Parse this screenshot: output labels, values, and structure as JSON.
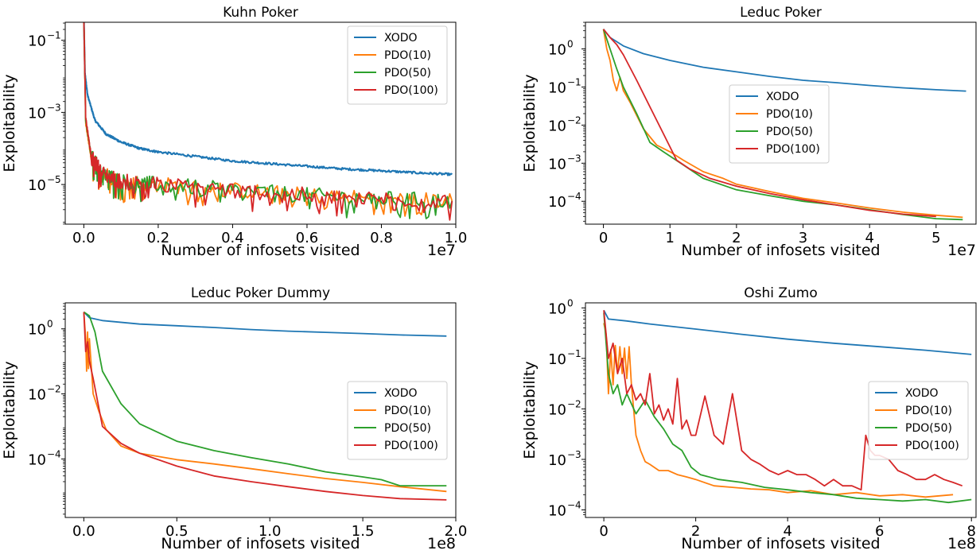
{
  "colors": {
    "XODO": "#1f77b4",
    "PDO(10)": "#ff7f0e",
    "PDO(50)": "#2ca02c",
    "PDO(100)": "#d62728"
  },
  "chart_data": [
    {
      "type": "line",
      "title": "Kuhn Poker",
      "xlabel": "Number of infosets visited",
      "ylabel": "Exploitability",
      "x_multiplier_label": "1e7",
      "xlim": [
        -0.05,
        1.0
      ],
      "ylim_log10": [
        -6.1,
        -0.5
      ],
      "yscale": "log",
      "xticks": [
        {
          "v": 0.0,
          "label": "0.0"
        },
        {
          "v": 0.2,
          "label": "0.2"
        },
        {
          "v": 0.4,
          "label": "0.4"
        },
        {
          "v": 0.6,
          "label": "0.6"
        },
        {
          "v": 0.8,
          "label": "0.8"
        },
        {
          "v": 1.0,
          "label": "1.0"
        }
      ],
      "yticks": [
        {
          "exp": -1,
          "label": "10"
        },
        {
          "exp": -3,
          "label": "10"
        },
        {
          "exp": -5,
          "label": "10"
        }
      ],
      "legend": "top-right",
      "series": [
        {
          "name": "XODO",
          "noisy": true,
          "x": [
            0,
            0.003,
            0.01,
            0.03,
            0.06,
            0.1,
            0.15,
            0.2,
            0.3,
            0.4,
            0.5,
            0.6,
            0.7,
            0.8,
            0.9,
            0.99
          ],
          "y": [
            0.45,
            0.012,
            0.003,
            0.0006,
            0.00025,
            0.00015,
            0.0001,
            8e-05,
            6e-05,
            4.5e-05,
            3.8e-05,
            3.2e-05,
            2.7e-05,
            2.4e-05,
            2.1e-05,
            1.9e-05
          ]
        },
        {
          "name": "PDO(10)",
          "noisy": true,
          "x": [
            0,
            0.005,
            0.02,
            0.05,
            0.1,
            0.2,
            0.4,
            0.6,
            0.8,
            0.99
          ],
          "y": [
            0.45,
            0.0005,
            5e-05,
            2e-05,
            1.2e-05,
            1e-05,
            7e-06,
            5e-06,
            4e-06,
            3.5e-06
          ]
        },
        {
          "name": "PDO(50)",
          "noisy": true,
          "x": [
            0,
            0.005,
            0.02,
            0.05,
            0.1,
            0.2,
            0.4,
            0.6,
            0.8,
            0.99
          ],
          "y": [
            0.45,
            0.0006,
            6e-05,
            2e-05,
            1.2e-05,
            1e-05,
            7e-06,
            5e-06,
            4e-06,
            3.5e-06
          ]
        },
        {
          "name": "PDO(100)",
          "noisy": true,
          "x": [
            0,
            0.005,
            0.02,
            0.05,
            0.1,
            0.2,
            0.4,
            0.6,
            0.8,
            0.99
          ],
          "y": [
            0.45,
            0.0007,
            6e-05,
            2e-05,
            1.2e-05,
            1e-05,
            7e-06,
            5e-06,
            4e-06,
            3.5e-06
          ]
        }
      ]
    },
    {
      "type": "line",
      "title": "Leduc Poker",
      "xlabel": "Number of infosets visited",
      "ylabel": "Exploitability",
      "x_multiplier_label": "1e7",
      "xlim": [
        -0.27,
        5.6
      ],
      "ylim_log10": [
        -4.6,
        0.7
      ],
      "yscale": "log",
      "xticks": [
        {
          "v": 0,
          "label": "0"
        },
        {
          "v": 1,
          "label": "1"
        },
        {
          "v": 2,
          "label": "2"
        },
        {
          "v": 3,
          "label": "3"
        },
        {
          "v": 4,
          "label": "4"
        },
        {
          "v": 5,
          "label": "5"
        }
      ],
      "yticks": [
        {
          "exp": 0,
          "label": "10"
        },
        {
          "exp": -1,
          "label": "10"
        },
        {
          "exp": -2,
          "label": "10"
        },
        {
          "exp": -3,
          "label": "10"
        },
        {
          "exp": -4,
          "label": "10"
        }
      ],
      "legend": "center-right",
      "series": [
        {
          "name": "XODO",
          "x": [
            0,
            0.1,
            0.3,
            0.6,
            1.0,
            1.5,
            2,
            2.5,
            3,
            3.5,
            4,
            4.5,
            5,
            5.45
          ],
          "y": [
            3.3,
            2.0,
            1.2,
            0.75,
            0.5,
            0.33,
            0.25,
            0.19,
            0.15,
            0.13,
            0.11,
            0.095,
            0.085,
            0.078
          ]
        },
        {
          "name": "PDO(10)",
          "x": [
            0,
            0.05,
            0.1,
            0.15,
            0.2,
            0.25,
            0.3,
            0.4,
            0.6,
            0.8,
            1.0,
            1.2,
            1.5,
            1.8,
            2.0,
            2.5,
            3.0,
            3.5,
            4.0,
            4.5,
            5.0,
            5.4
          ],
          "y": [
            3.3,
            1.0,
            0.5,
            0.15,
            0.08,
            0.18,
            0.08,
            0.04,
            0.008,
            0.003,
            0.002,
            0.0012,
            0.0006,
            0.0004,
            0.00028,
            0.00018,
            0.00012,
            9e-05,
            6.7e-05,
            5.2e-05,
            4.3e-05,
            3.8e-05
          ]
        },
        {
          "name": "PDO(50)",
          "x": [
            0,
            0.1,
            0.2,
            0.3,
            0.5,
            0.7,
            0.9,
            1.2,
            1.5,
            2.0,
            2.5,
            3.0,
            3.5,
            4.0,
            4.5,
            5.0,
            5.4
          ],
          "y": [
            3.3,
            1.0,
            0.3,
            0.1,
            0.02,
            0.0035,
            0.002,
            0.0009,
            0.0004,
            0.0002,
            0.00014,
            0.0001,
            8e-05,
            6e-05,
            4.5e-05,
            3.5e-05,
            3.3e-05
          ]
        },
        {
          "name": "PDO(100)",
          "x": [
            0,
            0.1,
            0.2,
            0.3,
            0.5,
            0.7,
            0.9,
            1.1,
            1.3,
            1.6,
            2.0,
            2.5,
            3.0,
            3.5,
            4.0,
            4.5,
            5.0
          ],
          "y": [
            3.3,
            2.0,
            1.3,
            0.7,
            0.15,
            0.03,
            0.006,
            0.0012,
            0.0007,
            0.0004,
            0.00025,
            0.00016,
            0.00011,
            8e-05,
            5.8e-05,
            4.6e-05,
            4e-05
          ]
        }
      ]
    },
    {
      "type": "line",
      "title": "Leduc Poker Dummy",
      "xlabel": "Number of infosets visited",
      "ylabel": "Exploitability",
      "x_multiplier_label": "1e8",
      "xlim": [
        -0.1,
        2.0
      ],
      "ylim_log10": [
        -5.8,
        0.8
      ],
      "yscale": "log",
      "xticks": [
        {
          "v": 0.0,
          "label": "0.0"
        },
        {
          "v": 0.5,
          "label": "0.5"
        },
        {
          "v": 1.0,
          "label": "1.0"
        },
        {
          "v": 1.5,
          "label": "1.5"
        },
        {
          "v": 2.0,
          "label": "2.0"
        }
      ],
      "yticks": [
        {
          "exp": 0,
          "label": "10"
        },
        {
          "exp": -2,
          "label": "10"
        },
        {
          "exp": -4,
          "label": "10"
        }
      ],
      "legend": "center-right",
      "series": [
        {
          "name": "XODO",
          "x": [
            0,
            0.03,
            0.1,
            0.3,
            0.5,
            0.7,
            0.9,
            1.1,
            1.3,
            1.5,
            1.7,
            1.95
          ],
          "y": [
            3.3,
            2.2,
            1.8,
            1.4,
            1.25,
            1.1,
            0.95,
            0.85,
            0.78,
            0.72,
            0.65,
            0.6
          ]
        },
        {
          "name": "PDO(10)",
          "x": [
            0,
            0.01,
            0.015,
            0.02,
            0.025,
            0.03,
            0.05,
            0.08,
            0.12,
            0.2,
            0.3,
            0.5,
            0.7,
            0.9,
            1.1,
            1.3,
            1.5,
            1.7,
            1.95
          ],
          "y": [
            3.3,
            0.5,
            0.05,
            0.8,
            0.06,
            0.5,
            0.01,
            0.003,
            0.0008,
            0.00025,
            0.00015,
            9.5e-05,
            7e-05,
            5e-05,
            3.5e-05,
            2.5e-05,
            1.9e-05,
            1.4e-05,
            1e-05
          ]
        },
        {
          "name": "PDO(50)",
          "x": [
            0,
            0.03,
            0.06,
            0.1,
            0.2,
            0.3,
            0.5,
            0.7,
            0.9,
            1.1,
            1.3,
            1.5,
            1.6,
            1.7,
            1.95
          ],
          "y": [
            3.3,
            2.5,
            0.8,
            0.05,
            0.005,
            0.0012,
            0.00035,
            0.00018,
            0.00011,
            7e-05,
            4e-05,
            2.8e-05,
            2.3e-05,
            1.5e-05,
            1.5e-05
          ]
        },
        {
          "name": "PDO(100)",
          "x": [
            0,
            0.01,
            0.02,
            0.03,
            0.05,
            0.1,
            0.2,
            0.3,
            0.5,
            0.7,
            0.9,
            1.1,
            1.3,
            1.5,
            1.7,
            1.95
          ],
          "y": [
            3.3,
            0.2,
            0.4,
            0.1,
            0.03,
            0.001,
            0.0003,
            0.00015,
            6e-05,
            3e-05,
            2e-05,
            1.4e-05,
            1e-05,
            7.5e-06,
            6e-06,
            5.5e-06
          ]
        }
      ]
    },
    {
      "type": "line",
      "title": "Oshi Zumo",
      "xlabel": "Number of infosets visited",
      "ylabel": "Exploitability",
      "x_multiplier_label": "1e8",
      "xlim": [
        -0.4,
        8.1
      ],
      "ylim_log10": [
        -4.15,
        0.1
      ],
      "yscale": "log",
      "xticks": [
        {
          "v": 0,
          "label": "0"
        },
        {
          "v": 2,
          "label": "2"
        },
        {
          "v": 4,
          "label": "4"
        },
        {
          "v": 6,
          "label": "6"
        },
        {
          "v": 8,
          "label": "8"
        }
      ],
      "yticks": [
        {
          "exp": 0,
          "label": "10"
        },
        {
          "exp": -1,
          "label": "10"
        },
        {
          "exp": -2,
          "label": "10"
        },
        {
          "exp": -3,
          "label": "10"
        },
        {
          "exp": -4,
          "label": "10"
        }
      ],
      "legend": "center-right",
      "series": [
        {
          "name": "XODO",
          "x": [
            0,
            0.1,
            0.5,
            1,
            2,
            3,
            4,
            5,
            6,
            7,
            8
          ],
          "y": [
            0.9,
            0.6,
            0.55,
            0.48,
            0.38,
            0.3,
            0.24,
            0.2,
            0.17,
            0.145,
            0.12
          ]
        },
        {
          "name": "PDO(10)",
          "x": [
            0,
            0.05,
            0.1,
            0.15,
            0.2,
            0.25,
            0.3,
            0.35,
            0.4,
            0.45,
            0.5,
            0.55,
            0.6,
            0.7,
            0.8,
            0.9,
            1.0,
            1.2,
            1.4,
            1.6,
            1.8,
            2.0,
            2.4,
            2.8,
            3.2,
            3.6,
            4.0,
            4.5,
            5.0,
            5.5,
            6.0,
            6.5,
            7.0,
            7.6
          ],
          "y": [
            0.5,
            0.3,
            0.02,
            0.15,
            0.03,
            0.18,
            0.05,
            0.17,
            0.05,
            0.16,
            0.04,
            0.17,
            0.03,
            0.003,
            0.0015,
            0.0009,
            0.0008,
            0.0006,
            0.0006,
            0.0005,
            0.00045,
            0.0004,
            0.0003,
            0.00028,
            0.00026,
            0.00025,
            0.00022,
            0.00024,
            0.0002,
            0.00022,
            0.00019,
            0.0002,
            0.00018,
            0.0002
          ]
        },
        {
          "name": "PDO(50)",
          "x": [
            0,
            0.1,
            0.2,
            0.3,
            0.4,
            0.5,
            0.7,
            0.9,
            1.1,
            1.3,
            1.5,
            1.7,
            1.9,
            2.1,
            2.5,
            3.0,
            3.5,
            4.0,
            4.5,
            5.0,
            5.5,
            6.0,
            6.5,
            7.0,
            7.5,
            8.0
          ],
          "y": [
            0.8,
            0.05,
            0.02,
            0.03,
            0.012,
            0.02,
            0.008,
            0.015,
            0.007,
            0.004,
            0.002,
            0.0015,
            0.0007,
            0.0005,
            0.0004,
            0.00035,
            0.00028,
            0.00025,
            0.00022,
            0.0002,
            0.00017,
            0.00016,
            0.00015,
            0.00016,
            0.00014,
            0.00016
          ]
        },
        {
          "name": "PDO(100)",
          "x": [
            0,
            0.1,
            0.2,
            0.3,
            0.4,
            0.5,
            0.6,
            0.7,
            0.8,
            0.9,
            1.0,
            1.1,
            1.2,
            1.3,
            1.4,
            1.5,
            1.6,
            1.7,
            1.8,
            1.9,
            2.0,
            2.2,
            2.4,
            2.6,
            2.8,
            3.0,
            3.2,
            3.4,
            3.6,
            3.8,
            4.0,
            4.2,
            4.4,
            4.6,
            4.8,
            5.0,
            5.2,
            5.4,
            5.6,
            5.7,
            5.8,
            5.9,
            6.0,
            6.2,
            6.4,
            6.6,
            6.8,
            7.0,
            7.2,
            7.4,
            7.6,
            7.8
          ],
          "y": [
            0.9,
            0.1,
            0.2,
            0.05,
            0.1,
            0.02,
            0.03,
            0.015,
            0.02,
            0.012,
            0.05,
            0.008,
            0.012,
            0.006,
            0.01,
            0.005,
            0.04,
            0.004,
            0.006,
            0.003,
            0.003,
            0.018,
            0.003,
            0.002,
            0.02,
            0.0015,
            0.001,
            0.0008,
            0.0006,
            0.0005,
            0.0006,
            0.0005,
            0.0005,
            0.0004,
            0.0003,
            0.0004,
            0.0003,
            0.0003,
            0.00025,
            0.003,
            0.0015,
            0.0012,
            0.0012,
            0.001,
            0.0006,
            0.0005,
            0.0004,
            0.0004,
            0.0005,
            0.0004,
            0.00035,
            0.0003
          ]
        }
      ]
    }
  ]
}
